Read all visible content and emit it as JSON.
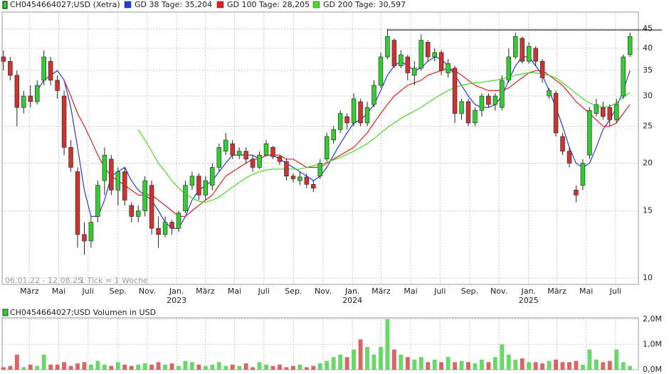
{
  "chart_data": {
    "type": "candlestick",
    "title": "CH0454664027;USD (Xetra)",
    "log": true,
    "grid": true,
    "up_color": "#33cc33",
    "down_color": "#cc3333",
    "xlim": [
      -0.4,
      188.5
    ],
    "ylim": [
      9.62,
      49.8
    ],
    "yticks": [
      10,
      15,
      20,
      25,
      30,
      35,
      40,
      45
    ],
    "xticks": [
      {
        "value": 7.7,
        "label": "März"
      },
      {
        "value": 16.4,
        "label": "Mai"
      },
      {
        "value": 25.1,
        "label": "Juli"
      },
      {
        "value": 34,
        "label": "Sep."
      },
      {
        "value": 42.7,
        "label": "Nov."
      },
      {
        "value": 51.4,
        "label": "Jan."
      },
      {
        "value": 59.9,
        "label": "März"
      },
      {
        "value": 68.6,
        "label": "Mai"
      },
      {
        "value": 77.3,
        "label": "Juli"
      },
      {
        "value": 86.1,
        "label": "Sep."
      },
      {
        "value": 94.9,
        "label": "Nov."
      },
      {
        "value": 103.6,
        "label": "Jan."
      },
      {
        "value": 112.1,
        "label": "März"
      },
      {
        "value": 120.9,
        "label": "Mai"
      },
      {
        "value": 129.6,
        "label": "Juli"
      },
      {
        "value": 138.4,
        "label": "Sep."
      },
      {
        "value": 147.1,
        "label": "Nov."
      },
      {
        "value": 155.9,
        "label": "Jan."
      },
      {
        "value": 164.3,
        "label": "März"
      },
      {
        "value": 173,
        "label": "Mai"
      },
      {
        "value": 181.7,
        "label": "Juli"
      }
    ],
    "year_labels": [
      {
        "value": 51.4,
        "label": "2023"
      },
      {
        "value": 103.6,
        "label": "2024"
      },
      {
        "value": 155.9,
        "label": "2025"
      }
    ],
    "date_range": "06.01.22 - 12.08.25",
    "tick_note": "1 Tick = 1 Woche",
    "level_line": {
      "value": 44.7,
      "start": 114,
      "color": "#000000"
    },
    "x": [
      0,
      2,
      4,
      6,
      8,
      10,
      12,
      14,
      16,
      18,
      20,
      22,
      24,
      26,
      28,
      30,
      32,
      34,
      36,
      38,
      40,
      42,
      44,
      46,
      48,
      50,
      52,
      54,
      56,
      58,
      60,
      62,
      64,
      66,
      68,
      70,
      72,
      74,
      76,
      78,
      80,
      82,
      84,
      86,
      88,
      90,
      92,
      94,
      96,
      98,
      100,
      102,
      104,
      106,
      108,
      110,
      112,
      114,
      116,
      118,
      120,
      122,
      124,
      126,
      128,
      130,
      132,
      134,
      136,
      138,
      140,
      142,
      144,
      146,
      148,
      150,
      152,
      154,
      156,
      158,
      160,
      162,
      164,
      166,
      168,
      170,
      172,
      174,
      176,
      178,
      180,
      182,
      184,
      186
    ],
    "open": [
      38,
      37,
      34,
      28,
      30,
      29,
      33,
      37,
      33,
      30,
      22,
      19,
      13,
      12.5,
      14.5,
      18,
      20.5,
      17,
      19,
      15.5,
      14.5,
      15,
      17.5,
      13.5,
      13,
      14,
      13.5,
      15,
      17.5,
      18.5,
      16.5,
      17.5,
      19.5,
      21.5,
      22.5,
      21,
      21.5,
      20.5,
      19.5,
      21,
      22,
      20.8,
      20.2,
      18.5,
      18,
      18.4,
      17.6,
      18.5,
      20.5,
      23,
      24.5,
      26.5,
      25.5,
      29,
      25.5,
      28.5,
      32,
      38,
      42,
      36,
      38,
      34,
      35.5,
      41.5,
      38,
      39,
      34.5,
      35.5,
      27,
      29,
      25.5,
      27.5,
      30,
      28.5,
      28,
      33,
      38,
      42.5,
      37,
      40,
      37,
      30,
      30.5,
      23.5,
      21.5,
      17,
      17.5,
      21,
      27,
      28,
      28,
      26,
      30,
      38.5
    ],
    "high": [
      39.5,
      38,
      35,
      31,
      32,
      33,
      39.5,
      38,
      34,
      31,
      23,
      19.5,
      14,
      14.5,
      18,
      22,
      21,
      19.5,
      19.5,
      15.8,
      15.5,
      18.5,
      18,
      14.5,
      14.5,
      14.2,
      15,
      18,
      19,
      18.8,
      18.5,
      20,
      22.5,
      24,
      23,
      22,
      22,
      21,
      21.5,
      23,
      22.2,
      21,
      20.5,
      18.8,
      19,
      18.8,
      18,
      20.5,
      24,
      25,
      27.5,
      27,
      30.5,
      29.5,
      29,
      33,
      39,
      45,
      42.5,
      39.5,
      38.5,
      37,
      43.5,
      42,
      40,
      39.5,
      37.5,
      36,
      29.5,
      29.5,
      28,
      30.5,
      30.5,
      30.5,
      34,
      40,
      44,
      43,
      41.5,
      40.5,
      37.5,
      31.5,
      31,
      24,
      22,
      17.5,
      20.5,
      28,
      29.5,
      29,
      28.5,
      29.5,
      38.5,
      44
    ],
    "low": [
      35,
      33,
      25,
      27,
      28,
      28.5,
      32,
      32,
      29.5,
      21,
      19,
      12,
      11.5,
      12,
      14,
      16.5,
      16.5,
      15.5,
      15.5,
      14,
      14,
      14.5,
      13,
      12,
      12.8,
      13,
      13.2,
      14.8,
      17,
      16,
      16,
      17,
      19,
      21,
      20.5,
      20.5,
      20,
      19,
      19.3,
      20.8,
      20.5,
      19.8,
      18,
      17.8,
      17.5,
      17.2,
      16.8,
      18.2,
      20.2,
      22.5,
      24,
      24.5,
      25,
      25,
      25,
      28,
      31.5,
      37.5,
      35.5,
      35.5,
      33,
      32,
      35,
      37,
      37,
      34,
      33.5,
      25.5,
      26,
      25,
      25,
      26.5,
      28,
      27.5,
      27.5,
      32.5,
      37.5,
      36.5,
      36.5,
      36,
      32.5,
      29.5,
      23.5,
      21,
      19.5,
      15.8,
      17,
      20.5,
      26.5,
      26,
      25,
      25.5,
      29.5,
      38
    ],
    "close": [
      37,
      34,
      28,
      30,
      29,
      32,
      38,
      33,
      31,
      22,
      19.5,
      13,
      12.5,
      14,
      17.5,
      21,
      17,
      19,
      16,
      14.5,
      15,
      18,
      13.5,
      13,
      14,
      13.5,
      14.8,
      17.5,
      18.5,
      16.5,
      18,
      19.5,
      22,
      23,
      21,
      21.5,
      20.5,
      19.5,
      21,
      22.5,
      20.8,
      20.2,
      18.5,
      18.2,
      18.4,
      17.6,
      17.2,
      20,
      23.5,
      24.5,
      27,
      25.5,
      29.5,
      25.5,
      28,
      32,
      38,
      43,
      36,
      38.5,
      34.5,
      35.5,
      42,
      38,
      39,
      35,
      36.5,
      27,
      29,
      25.5,
      27.5,
      30,
      28.5,
      30,
      33,
      38,
      43,
      37,
      40.5,
      37,
      33.5,
      31,
      24,
      21.5,
      20,
      16.5,
      20,
      27.5,
      28.5,
      26.5,
      26,
      28.5,
      38,
      43
    ],
    "series": [
      {
        "name": "GD 38 Tage: 35,204",
        "color": "#1f3fd6",
        "values": [
          null,
          null,
          null,
          null,
          null,
          31,
          33,
          34,
          35,
          33,
          28,
          22,
          17,
          14.5,
          14.5,
          16,
          18.5,
          19,
          19.5,
          18,
          17,
          16.5,
          16,
          15,
          14,
          13.5,
          13.5,
          14.5,
          16,
          17,
          17.5,
          18,
          19,
          20,
          21,
          21,
          21,
          21,
          20.5,
          21,
          21,
          20.5,
          20,
          19.5,
          19,
          18.5,
          18,
          18.5,
          19.5,
          21,
          22.5,
          24,
          25.5,
          26,
          27,
          28.5,
          31,
          34,
          36,
          37,
          36,
          35,
          35.5,
          37,
          38,
          37.5,
          36,
          34,
          32,
          30,
          28.5,
          28,
          28,
          28.5,
          30,
          33,
          36,
          38,
          38,
          36,
          34,
          31,
          28,
          25,
          22,
          20,
          19.5,
          20,
          22,
          24.5,
          26,
          28,
          31,
          35
        ]
      },
      {
        "name": "GD 100 Tage: 28,205",
        "color": "#e02020",
        "values": [
          null,
          null,
          null,
          null,
          null,
          null,
          null,
          null,
          null,
          33,
          30,
          27,
          25,
          23,
          21,
          19.5,
          18.5,
          18,
          17.5,
          17,
          16.5,
          16.5,
          16.5,
          16,
          15.5,
          15,
          14.5,
          14.5,
          15,
          15.5,
          16,
          16.5,
          17.5,
          18.5,
          19,
          19.5,
          20,
          20.5,
          20.5,
          21,
          21,
          21,
          20.5,
          20.5,
          20,
          19.5,
          19.5,
          19.5,
          20,
          20.5,
          21,
          21.5,
          22,
          23,
          24,
          25.5,
          27,
          28.5,
          30,
          31,
          32,
          32.5,
          33,
          34,
          34.5,
          35,
          35.5,
          35,
          34,
          33,
          32,
          31.5,
          31,
          31,
          31,
          31.5,
          32.5,
          33.5,
          34.5,
          35,
          35,
          34,
          33,
          32,
          30.5,
          29,
          28,
          27,
          26,
          25,
          25,
          25.5,
          27,
          28.5
        ]
      },
      {
        "name": "GD 200 Tage: 30,597",
        "color": "#44dd22",
        "values": [
          null,
          null,
          null,
          null,
          null,
          null,
          null,
          null,
          null,
          null,
          null,
          null,
          null,
          null,
          null,
          null,
          null,
          null,
          null,
          null,
          24.5,
          23,
          21.5,
          20,
          19,
          18,
          17.2,
          16.6,
          16.2,
          15.9,
          15.8,
          16,
          16.3,
          16.8,
          17.3,
          17.8,
          18.3,
          18.7,
          19,
          19.2,
          19.3,
          19.3,
          19.3,
          19.3,
          19.3,
          19.5,
          19.7,
          19.9,
          20.1,
          20.4,
          20.7,
          21.1,
          21.5,
          22,
          22.5,
          23.2,
          24,
          24.8,
          25.5,
          26.2,
          26.8,
          27.4,
          28,
          28.8,
          29.6,
          30.3,
          31,
          31.6,
          32,
          32.3,
          32.5,
          32.6,
          32.8,
          33,
          33.3,
          33.6,
          34,
          34.3,
          34.5,
          34.5,
          34.3,
          34,
          33.5,
          32.5,
          31.5,
          30.5,
          29.5,
          28.8,
          28.3,
          28,
          28.2,
          28.8,
          29.8,
          30.6
        ]
      }
    ],
    "volume": {
      "title": "CH0454664027;USD Volumen in USD",
      "ylim": [
        0,
        2.05
      ],
      "yticks": [
        {
          "value": 0,
          "label": "0,0M"
        },
        {
          "value": 1,
          "label": "1,0M"
        },
        {
          "value": 2,
          "label": "2,0M"
        }
      ],
      "values": [
        0.1,
        0.15,
        0.6,
        0.1,
        0.2,
        0.15,
        0.6,
        0.2,
        0.2,
        0.3,
        0.15,
        0.25,
        0.3,
        0.2,
        0.35,
        0.2,
        0.15,
        0.3,
        0.2,
        0.15,
        0.2,
        0.25,
        0.2,
        0.3,
        0.2,
        0.25,
        0.15,
        0.35,
        0.3,
        0.2,
        0.15,
        0.2,
        0.3,
        0.15,
        0.2,
        0.15,
        0.25,
        0.1,
        0.3,
        0.2,
        0.15,
        0.2,
        0.1,
        0.15,
        0.2,
        0.1,
        0.15,
        0.25,
        0.35,
        0.5,
        0.6,
        0.5,
        0.8,
        1.2,
        0.9,
        0.6,
        0.9,
        2.0,
        0.8,
        0.6,
        0.5,
        0.4,
        0.5,
        0.3,
        0.4,
        0.3,
        0.5,
        0.3,
        0.35,
        0.3,
        0.25,
        0.4,
        0.3,
        0.5,
        1.0,
        0.6,
        0.4,
        0.45,
        0.3,
        0.3,
        0.25,
        0.35,
        0.4,
        0.3,
        0.3,
        0.35,
        0.2,
        0.8,
        0.4,
        0.3,
        0.35,
        0.8,
        0.3,
        0.15
      ]
    }
  }
}
